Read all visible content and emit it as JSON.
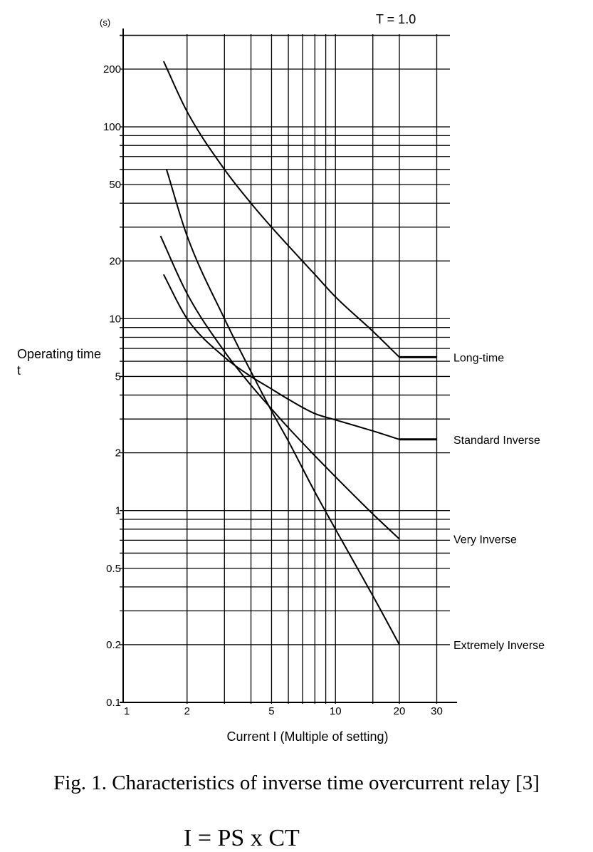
{
  "chart_data": {
    "type": "line",
    "title": "",
    "annotation": "T = 1.0",
    "xlabel": "Current I (Multiple of setting)",
    "ylabel": "Operating time t",
    "ylabel_unit": "(s)",
    "xscale": "log",
    "yscale": "log",
    "xlim": [
      1,
      30
    ],
    "ylim": [
      0.1,
      300
    ],
    "grid": true,
    "legend": "inline labels at right end of each curve",
    "x_ticks": [
      1,
      2,
      5,
      10,
      20,
      30
    ],
    "x_tick_labels": [
      "1",
      "2",
      "5",
      "10",
      "20",
      "30"
    ],
    "y_ticks": [
      0.1,
      0.2,
      0.5,
      1,
      2,
      5,
      10,
      20,
      50,
      100,
      200
    ],
    "y_tick_labels": [
      "0.1",
      "0.2",
      "0.5",
      "1",
      "2",
      "5",
      "10",
      "20",
      "50",
      "100",
      "200"
    ],
    "series": [
      {
        "name": "Long-time",
        "x": [
          1.55,
          2,
          3,
          4,
          5,
          6,
          8,
          10,
          15,
          20,
          30
        ],
        "y": [
          220,
          120,
          60,
          40,
          30,
          24,
          17,
          13,
          8.6,
          6.3,
          6.3
        ]
      },
      {
        "name": "Standard Inverse",
        "x": [
          1.55,
          2,
          3,
          4,
          5,
          6,
          8,
          10,
          15,
          20,
          30
        ],
        "y": [
          17,
          10,
          6.3,
          5.0,
          4.3,
          3.8,
          3.2,
          2.97,
          2.6,
          2.35,
          2.35
        ]
      },
      {
        "name": "Very Inverse",
        "x": [
          1.5,
          2,
          3,
          4,
          5,
          6,
          8,
          10,
          15,
          20
        ],
        "y": [
          27,
          13.5,
          6.75,
          4.5,
          3.38,
          2.7,
          1.93,
          1.5,
          0.96,
          0.71
        ]
      },
      {
        "name": "Extremely Inverse",
        "x": [
          1.6,
          2,
          3,
          4,
          5,
          6,
          8,
          10,
          15,
          20
        ],
        "y": [
          60,
          27,
          10,
          5.3,
          3.3,
          2.3,
          1.25,
          0.8,
          0.36,
          0.2
        ]
      }
    ]
  },
  "caption": "Fig. 1. Characteristics of inverse time overcurrent relay [3]",
  "formula": "I = PS x CT"
}
